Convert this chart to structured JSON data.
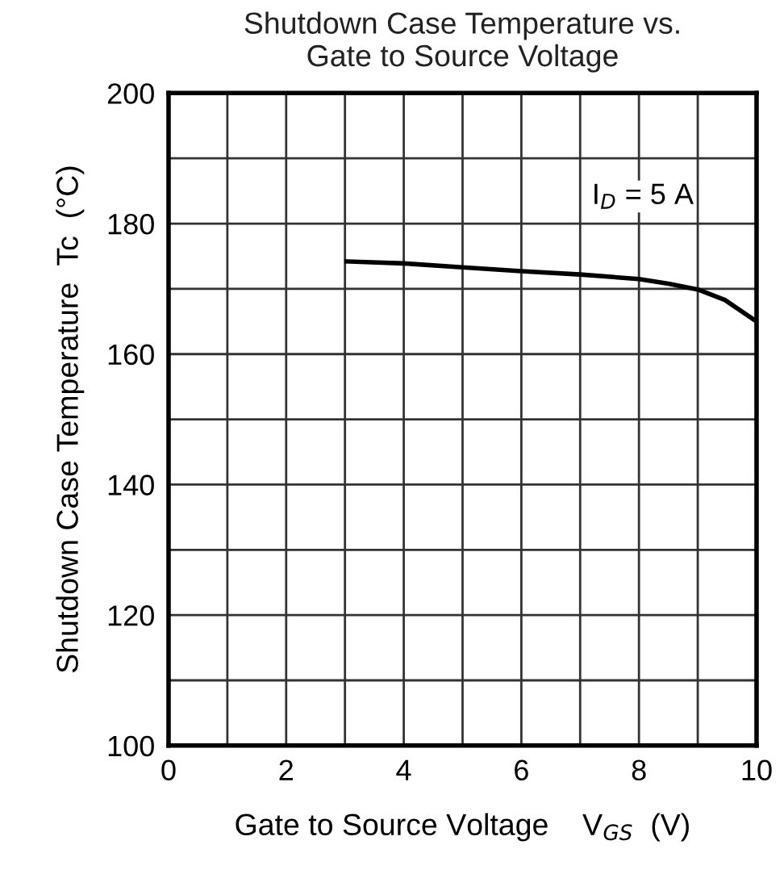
{
  "chart_data": {
    "type": "line",
    "title": "Shutdown Case Temperature vs.\nGate to Source Voltage",
    "xlabel": "Gate to Source Voltage    V$_{GS}$  (V)",
    "ylabel": "Shutdown Case Temperature  Tc  (°C)",
    "annotations": [
      "I$_{D}$ = 5 A"
    ],
    "series": [
      {
        "color": "#000000",
        "x": [
          3.03,
          4,
          5,
          6,
          7,
          8,
          8.5,
          9,
          9.46,
          10
        ],
        "values": [
          174.2,
          173.9,
          173.3,
          172.7,
          172.2,
          171.5,
          170.8,
          169.9,
          168.3,
          165
        ]
      }
    ],
    "xlim": [
      0,
      10
    ],
    "ylim": [
      100,
      200
    ],
    "xticks": [
      0,
      {
        "value": 1,
        "label": null
      },
      2,
      {
        "value": 3,
        "label": null
      },
      4,
      {
        "value": 5,
        "label": null
      },
      6,
      {
        "value": 7,
        "label": null
      },
      8,
      {
        "value": 9,
        "label": null
      },
      10
    ],
    "yticks": [
      100,
      {
        "value": 110,
        "label": null
      },
      120,
      {
        "value": 130,
        "label": null
      },
      140,
      {
        "value": 150,
        "label": null
      },
      160,
      {
        "value": 170,
        "label": null
      },
      180,
      {
        "value": 190,
        "label": null
      },
      200
    ],
    "grid": true,
    "marker": "none",
    "line_style": "solid",
    "legend": false
  }
}
